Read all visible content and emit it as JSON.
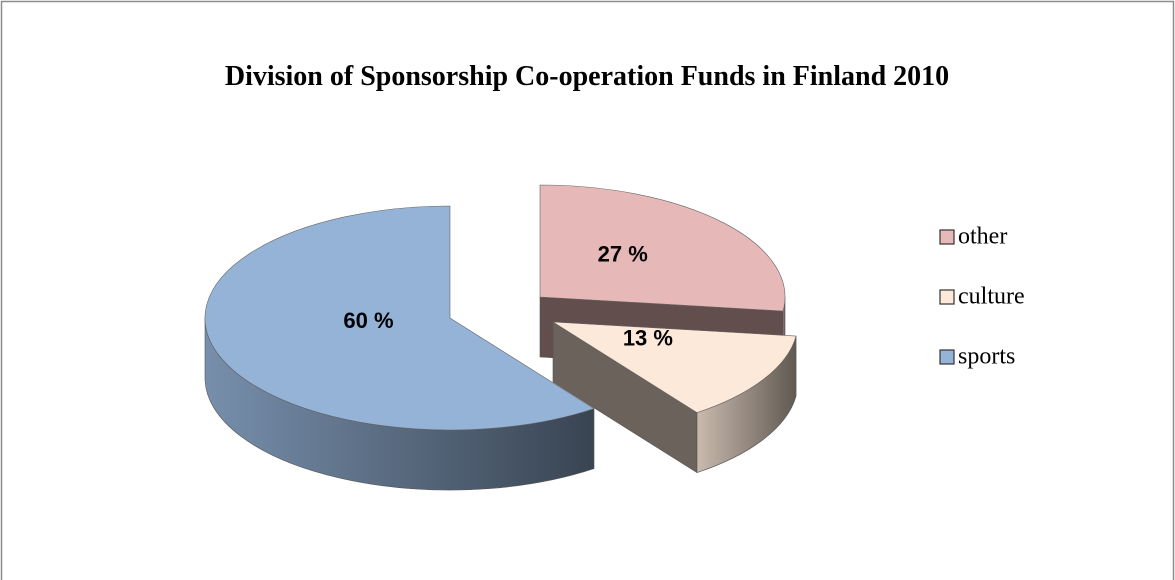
{
  "chart_data": {
    "type": "pie3d",
    "title": "Division of Sponsorship Co-operation Funds in Finland 2010",
    "categories": [
      "other",
      "culture",
      "sports"
    ],
    "values": [
      27,
      13,
      60
    ],
    "value_labels": [
      "27 %",
      "13 %",
      "60 %"
    ],
    "colors": [
      "#e6b9b8",
      "#fde9d9",
      "#95b3d7"
    ]
  }
}
